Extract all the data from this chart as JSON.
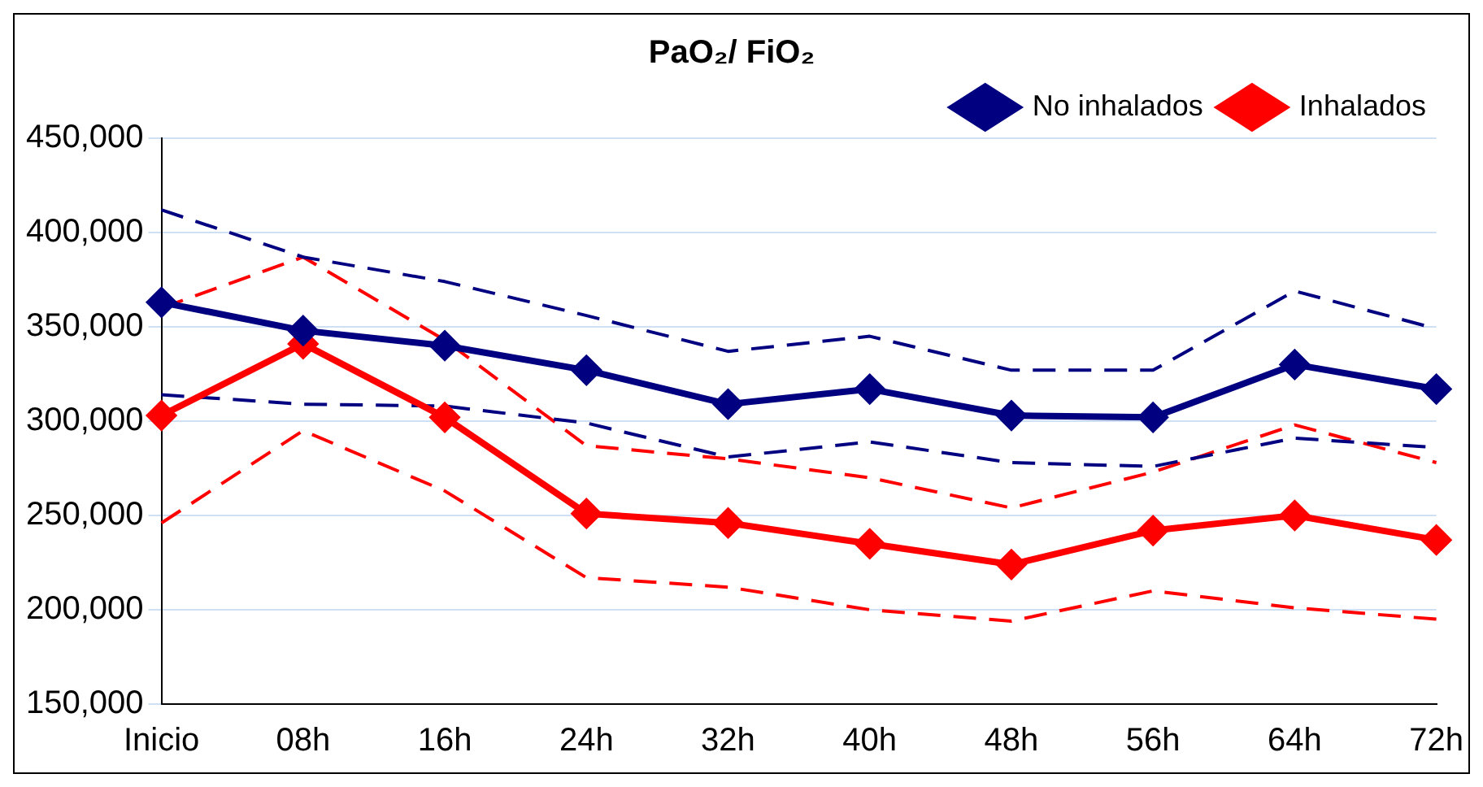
{
  "chart_data": {
    "type": "line",
    "title": "PaO₂/ FiO₂",
    "categories": [
      "Inicio",
      "08h",
      "16h",
      "24h",
      "32h",
      "40h",
      "48h",
      "56h",
      "64h",
      "72h"
    ],
    "series": [
      {
        "name": "No inhalados",
        "color": "#000080",
        "marker": "diamond",
        "line_style": "solid",
        "values": [
          363000,
          348000,
          340000,
          327000,
          309000,
          317000,
          303000,
          302000,
          330000,
          317000
        ]
      },
      {
        "name": "Inhalados",
        "color": "#ff0000",
        "marker": "diamond",
        "line_style": "solid",
        "values": [
          303000,
          341000,
          302000,
          251000,
          246000,
          235000,
          224000,
          242000,
          250000,
          237000
        ]
      },
      {
        "color": "#000080",
        "marker": "none",
        "line_style": "dashed",
        "values": [
          412000,
          387000,
          374000,
          356000,
          337000,
          345000,
          327000,
          327000,
          369000,
          349000
        ]
      },
      {
        "color": "#000080",
        "marker": "none",
        "line_style": "dashed",
        "values": [
          314000,
          309000,
          308000,
          299000,
          281000,
          289000,
          278000,
          276000,
          291000,
          286000
        ]
      },
      {
        "color": "#ff0000",
        "marker": "none",
        "line_style": "dashed",
        "values": [
          360000,
          387000,
          343000,
          287000,
          280000,
          270000,
          254000,
          273000,
          298000,
          278000
        ]
      },
      {
        "color": "#ff0000",
        "marker": "none",
        "line_style": "dashed",
        "values": [
          246000,
          295000,
          263000,
          217000,
          212000,
          200000,
          194000,
          210000,
          201000,
          195000
        ]
      }
    ],
    "ylim": [
      150000,
      450000
    ],
    "yticks": [
      {
        "value": 150000,
        "label": "150,000"
      },
      {
        "value": 200000,
        "label": "200,000"
      },
      {
        "value": 250000,
        "label": "250,000"
      },
      {
        "value": 300000,
        "label": "300,000"
      },
      {
        "value": 350000,
        "label": "350,000"
      },
      {
        "value": 400000,
        "label": "400,000"
      },
      {
        "value": 450000,
        "label": "450,000"
      }
    ],
    "grid": "y",
    "legend": "top right"
  }
}
